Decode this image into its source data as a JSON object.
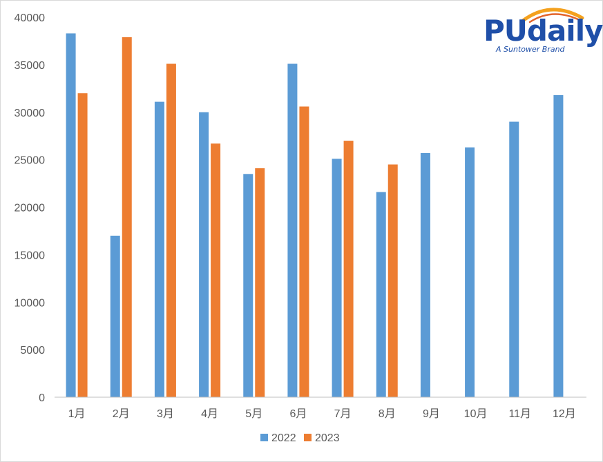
{
  "logo": {
    "name": "PUdaily",
    "tagline": "A Suntower Brand",
    "colors": {
      "text": "#1f4fa8",
      "arc_outer": "#f4a11e",
      "arc_inner": "#e2632a"
    }
  },
  "colors": {
    "series_2022": "#5b9bd5",
    "series_2023": "#ed7d31",
    "axis": "#bfbfbf",
    "text": "#595959"
  },
  "chart_data": {
    "type": "bar",
    "title": "",
    "xlabel": "",
    "ylabel": "",
    "ylim": [
      0,
      40000
    ],
    "yticks": [
      "0",
      "5000",
      "10000",
      "15000",
      "20000",
      "25000",
      "30000",
      "35000",
      "40000"
    ],
    "categories": [
      "1月",
      "2月",
      "3月",
      "4月",
      "5月",
      "6月",
      "7月",
      "8月",
      "9月",
      "10月",
      "11月",
      "12月"
    ],
    "grid": false,
    "legend_position": "bottom",
    "series": [
      {
        "name": "2022",
        "color": "#5b9bd5",
        "values": [
          38300,
          17000,
          31100,
          30000,
          23500,
          35100,
          25100,
          21600,
          25700,
          26300,
          29000,
          31800
        ]
      },
      {
        "name": "2023",
        "color": "#ed7d31",
        "values": [
          32000,
          37900,
          35100,
          26700,
          24100,
          30600,
          27000,
          24500,
          null,
          null,
          null,
          null
        ]
      }
    ]
  }
}
